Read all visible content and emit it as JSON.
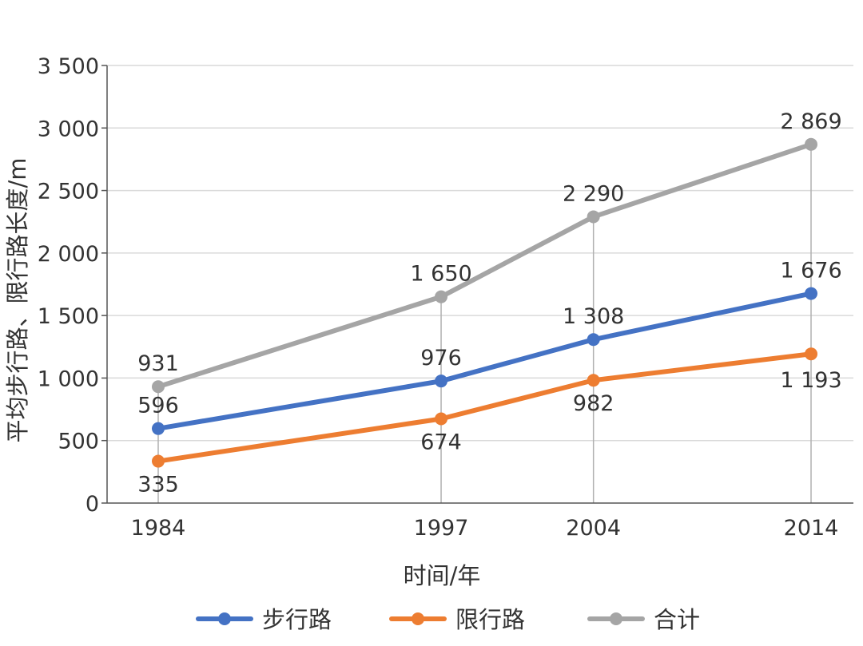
{
  "chart_data": {
    "type": "line",
    "title": "",
    "xlabel": "时间/年",
    "ylabel": "平均步行路、限行路长度/m",
    "x": [
      "1984",
      "1997",
      "2004",
      "2014"
    ],
    "x_values": [
      1984,
      1997,
      2004,
      2014
    ],
    "ylim": [
      0,
      3500
    ],
    "yticks": [
      0,
      500,
      1000,
      1500,
      2000,
      2500,
      3000,
      3500
    ],
    "ytick_labels": [
      "0",
      "500",
      "1 000",
      "1 500",
      "2 000",
      "2 500",
      "3 000",
      "3 500"
    ],
    "grid": "horizontal",
    "legend_position": "bottom",
    "series": [
      {
        "name": "步行路",
        "values": [
          596,
          976,
          1308,
          1676
        ],
        "labels": [
          "596",
          "976",
          "1 308",
          "1 676"
        ],
        "color": "#4472c4"
      },
      {
        "name": "限行路",
        "values": [
          335,
          674,
          982,
          1193
        ],
        "labels": [
          "335",
          "674",
          "982",
          "1 193"
        ],
        "color": "#ed7d31"
      },
      {
        "name": "合计",
        "values": [
          931,
          1650,
          2290,
          2869
        ],
        "labels": [
          "931",
          "1 650",
          "2 290",
          "2 869"
        ],
        "color": "#a5a5a5"
      }
    ]
  }
}
